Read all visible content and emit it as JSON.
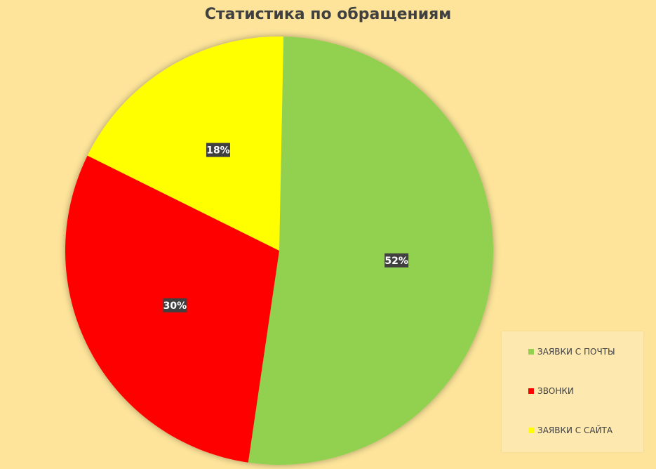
{
  "chart_data": {
    "type": "pie",
    "title": "Статистика по обращениям",
    "categories": [
      "ЗАЯВКИ С ПОЧТЫ",
      "ЗВОНКИ",
      "ЗАЯВКИ С САЙТА"
    ],
    "values": [
      52,
      30,
      18
    ],
    "data_labels": [
      "52%",
      "30%",
      "18%"
    ],
    "colors": [
      "#92d050",
      "#ff0000",
      "#ffff00"
    ],
    "legend_position": "bottom-right"
  }
}
